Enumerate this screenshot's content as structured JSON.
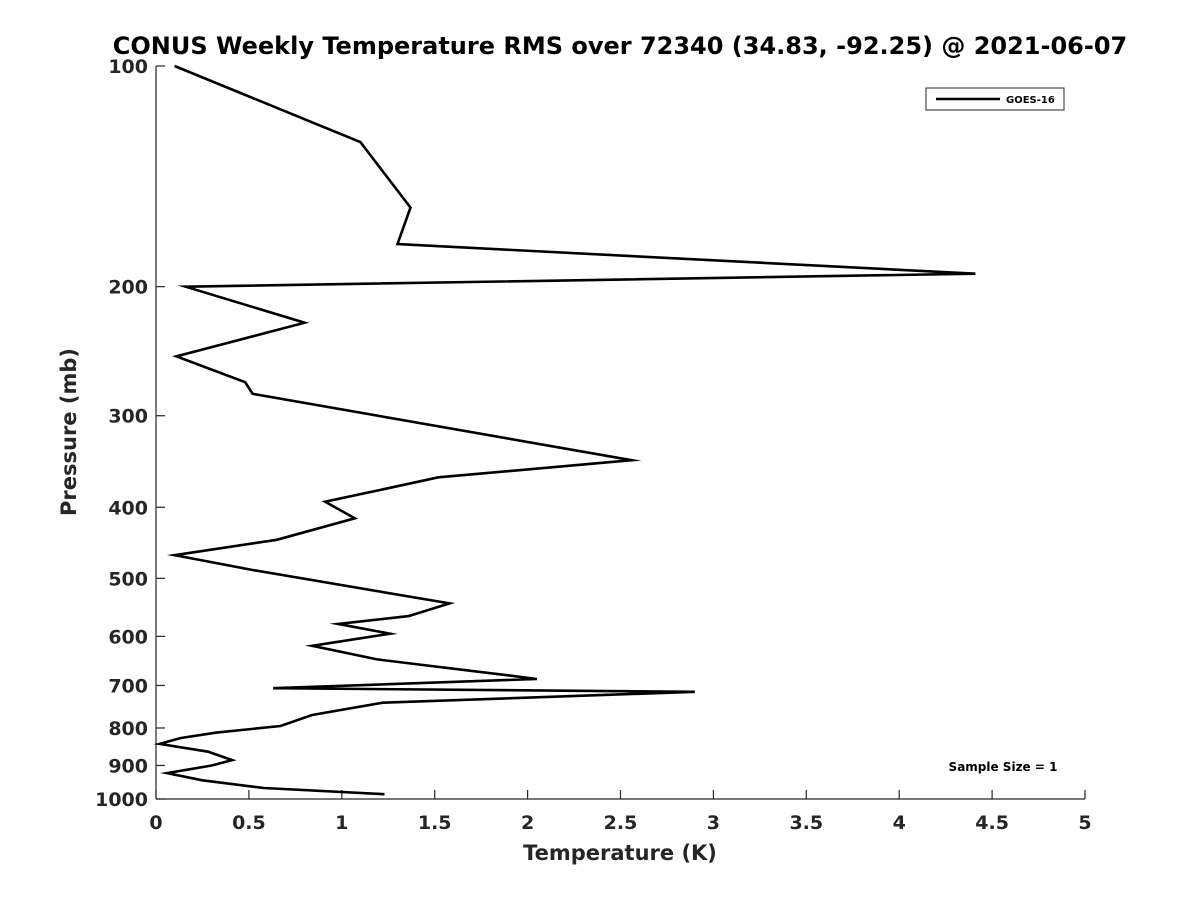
{
  "chart_data": {
    "type": "line",
    "title": "CONUS Weekly Temperature RMS over 72340 (34.83, -92.25) @ 2021-06-07",
    "xlabel": "Temperature (K)",
    "ylabel": "Pressure (mb)",
    "xlim": [
      0,
      5
    ],
    "ylim": [
      1000,
      100
    ],
    "y_scale": "log",
    "x_ticks": [
      0,
      0.5,
      1,
      1.5,
      2,
      2.5,
      3,
      3.5,
      4,
      4.5,
      5
    ],
    "x_tick_labels": [
      "0",
      "0.5",
      "1",
      "1.5",
      "2",
      "2.5",
      "3",
      "3.5",
      "4",
      "4.5",
      "5"
    ],
    "y_ticks": [
      100,
      200,
      300,
      400,
      500,
      600,
      700,
      800,
      900,
      1000
    ],
    "y_tick_labels": [
      "100",
      "200",
      "300",
      "400",
      "500",
      "600",
      "700",
      "800",
      "900",
      "1000"
    ],
    "grid": false,
    "legend_position": "top-right",
    "annotation": "Sample Size = 1",
    "series": [
      {
        "name": "GOES-16",
        "color": "#000000",
        "x": [
          0.1,
          1.1,
          1.37,
          1.3,
          4.41,
          0.16,
          0.8,
          0.11,
          0.48,
          0.52,
          2.56,
          1.52,
          1.18,
          0.91,
          1.07,
          0.65,
          0.1,
          0.52,
          1.58,
          1.36,
          0.98,
          1.26,
          0.84,
          1.19,
          1.81,
          2.05,
          0.63,
          2.9,
          1.22,
          0.84,
          0.67,
          0.32,
          0.13,
          0.02,
          0.28,
          0.41,
          0.3,
          0.06,
          0.25,
          0.58,
          1.23
        ],
        "y": [
          100,
          127,
          156,
          175,
          192,
          200,
          224,
          249,
          270,
          280,
          345,
          364,
          380,
          393,
          414,
          443,
          465,
          487,
          541,
          563,
          577,
          595,
          618,
          645,
          674,
          686,
          706,
          714,
          739,
          768,
          795,
          812,
          826,
          841,
          862,
          885,
          900,
          922,
          943,
          966,
          985
        ]
      }
    ]
  }
}
